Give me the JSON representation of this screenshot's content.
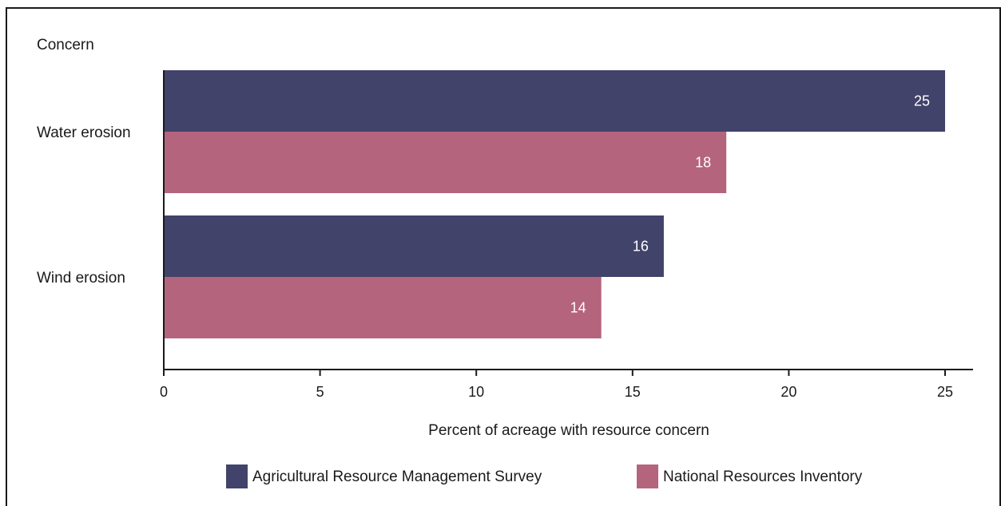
{
  "chart_data": {
    "type": "bar",
    "orientation": "horizontal",
    "ylabel": "Concern",
    "xlabel": "Percent of acreage with resource concern",
    "categories": [
      "Water erosion",
      "Wind erosion"
    ],
    "series": [
      {
        "name": "Agricultural Resource Management Survey",
        "color": "#41436a",
        "values": [
          25,
          16
        ]
      },
      {
        "name": "National Resources Inventory",
        "color": "#b5647d",
        "values": [
          18,
          14
        ]
      }
    ],
    "xlim": [
      0,
      25
    ],
    "xticks": [
      "0",
      "5",
      "10",
      "15",
      "20",
      "25"
    ],
    "data_labels": [
      "25",
      "18",
      "16",
      "14"
    ],
    "legend_position": "bottom",
    "grid": false
  }
}
